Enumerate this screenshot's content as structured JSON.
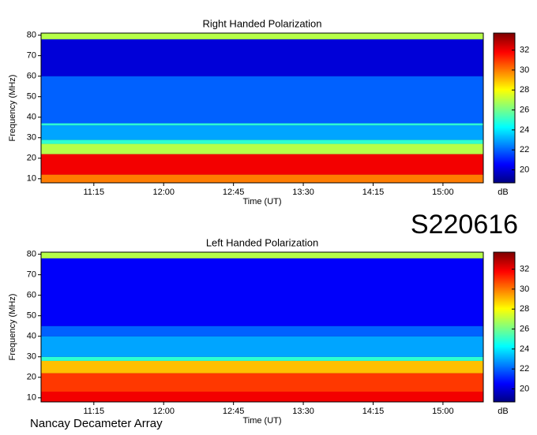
{
  "chart_data": [
    {
      "type": "heatmap",
      "title": "Right Handed Polarization",
      "x_label": "Time (UT)",
      "y_label": "Frequency (MHz)",
      "colorbar_label": "dB",
      "xlim": [
        641,
        926
      ],
      "xticks": [
        {
          "value": 675,
          "label": "11:15"
        },
        {
          "value": 720,
          "label": "12:00"
        },
        {
          "value": 765,
          "label": "12:45"
        },
        {
          "value": 810,
          "label": "13:30"
        },
        {
          "value": 855,
          "label": "14:15"
        },
        {
          "value": 900,
          "label": "15:00"
        }
      ],
      "ylim": [
        8,
        81
      ],
      "yticks": [
        10,
        20,
        30,
        40,
        50,
        60,
        70,
        80
      ],
      "clim": [
        18.7,
        33.7
      ],
      "cticks": [
        20,
        22,
        24,
        26,
        28,
        30,
        32
      ],
      "y_edges": [
        8,
        12,
        22,
        27,
        29,
        36,
        37,
        60,
        78,
        81
      ],
      "values": [
        30,
        32,
        27,
        25,
        23,
        25,
        22,
        20,
        27
      ]
    },
    {
      "type": "heatmap",
      "title": "Left Handed Polarization",
      "x_label": "Time (UT)",
      "y_label": "Frequency (MHz)",
      "colorbar_label": "dB",
      "xlim": [
        641,
        926
      ],
      "xticks": [
        {
          "value": 675,
          "label": "11:15"
        },
        {
          "value": 720,
          "label": "12:00"
        },
        {
          "value": 765,
          "label": "12:45"
        },
        {
          "value": 810,
          "label": "13:30"
        },
        {
          "value": 855,
          "label": "14:15"
        },
        {
          "value": 900,
          "label": "15:00"
        }
      ],
      "ylim": [
        8,
        81
      ],
      "yticks": [
        10,
        20,
        30,
        40,
        50,
        60,
        70,
        80
      ],
      "clim": [
        18.7,
        33.7
      ],
      "cticks": [
        20,
        22,
        24,
        26,
        28,
        30,
        32
      ],
      "y_edges": [
        8,
        13,
        22,
        28,
        30,
        40,
        45,
        78,
        81
      ],
      "values": [
        32,
        31,
        29,
        25,
        23,
        22,
        20.5,
        27
      ]
    }
  ],
  "event_id": "S220616",
  "footer": "Nancay Decameter Array"
}
